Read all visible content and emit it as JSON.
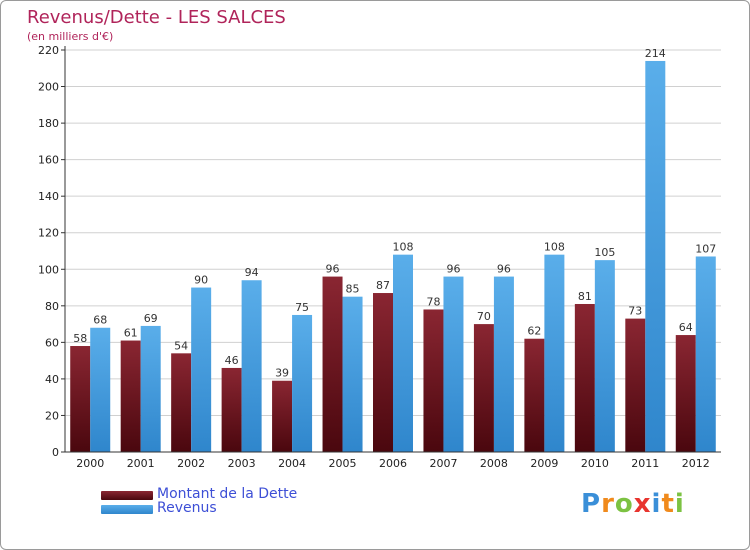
{
  "title": "Revenus/Dette - LES SALCES",
  "subtitle": "(en milliers d'€)",
  "colors": {
    "dette_top": "#8a2632",
    "dette_bottom": "#4a070e",
    "revenus_top": "#5aaeea",
    "revenus_bottom": "#2f86cc",
    "grid": "#d0d0d0",
    "axis": "#333333"
  },
  "logo": {
    "letters": [
      "P",
      "r",
      "o",
      "x",
      "i",
      "t",
      "i"
    ],
    "colors": [
      "#3a8fd8",
      "#f08a1c",
      "#7cc242",
      "#e8342e",
      "#3a8fd8",
      "#f08a1c",
      "#7cc242"
    ]
  },
  "chart_data": {
    "type": "bar",
    "title": "Revenus/Dette - LES SALCES",
    "ylabel": "(en milliers d'€)",
    "xlabel": "",
    "categories": [
      "2000",
      "2001",
      "2002",
      "2003",
      "2004",
      "2005",
      "2006",
      "2007",
      "2008",
      "2009",
      "2010",
      "2011",
      "2012"
    ],
    "series": [
      {
        "name": "Montant de la Dette",
        "values": [
          58,
          61,
          54,
          46,
          39,
          96,
          87,
          78,
          70,
          62,
          81,
          73,
          64
        ]
      },
      {
        "name": "Revenus",
        "values": [
          68,
          69,
          90,
          94,
          75,
          85,
          108,
          96,
          96,
          108,
          105,
          214,
          107
        ]
      }
    ],
    "ylim": [
      0,
      220
    ],
    "yticks": [
      0,
      20,
      40,
      60,
      80,
      100,
      120,
      140,
      160,
      180,
      200,
      220
    ],
    "grid": true,
    "legend": "bottom-left"
  }
}
